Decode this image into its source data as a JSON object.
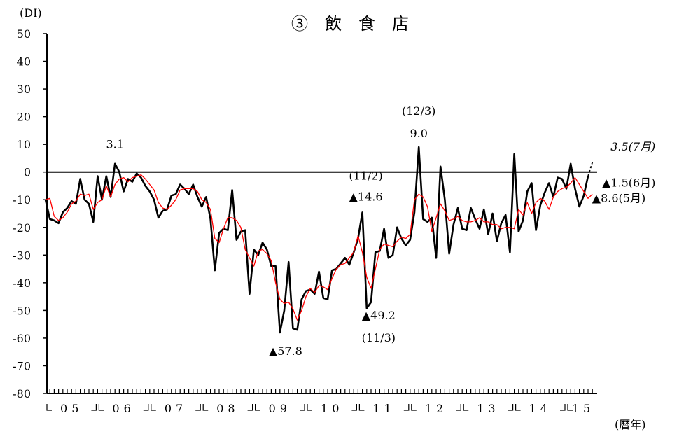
{
  "chart_data": {
    "type": "line",
    "title": "③　飲　食　店",
    "ylabel": "(DI)",
    "xlabel": "(暦年)",
    "ylim": [
      -80,
      50
    ],
    "yticks": [
      50,
      40,
      30,
      20,
      10,
      0,
      -10,
      -20,
      -30,
      -40,
      -50,
      -60,
      -70,
      -80
    ],
    "year_labels": [
      "05",
      "06",
      "07",
      "08",
      "09",
      "10",
      "11",
      "12",
      "13",
      "14",
      "15"
    ],
    "year_start_index": [
      0,
      12,
      24,
      36,
      48,
      60,
      72,
      84,
      96,
      108,
      120
    ],
    "months_total": 127,
    "zero_line": true,
    "series": [
      {
        "color": "#000000",
        "values": [
          -10,
          -17,
          -17.5,
          -18.5,
          -14.5,
          -13,
          -10.5,
          -11.5,
          -2.5,
          -10,
          -11.5,
          -18,
          -1.5,
          -10,
          -1.5,
          -9,
          3,
          0,
          -7,
          -2.5,
          -3.5,
          -0.5,
          -2,
          -5,
          -7,
          -10,
          -16.5,
          -14,
          -13.5,
          -8.5,
          -8,
          -4.5,
          -6,
          -8,
          -4.5,
          -9,
          -12.5,
          -9,
          -17,
          -35.5,
          -22,
          -20.5,
          -21,
          -6.5,
          -24.5,
          -21.5,
          -21,
          -44,
          -28,
          -30,
          -25.5,
          -28,
          -34,
          -34,
          -58,
          -50,
          -32.5,
          -56.5,
          -57,
          -46,
          -43,
          -42.5,
          -44,
          -36,
          -45.5,
          -46,
          -35.5,
          -35,
          -33,
          -31,
          -33.5,
          -29,
          -24,
          -14.6,
          -49.2,
          -47,
          -29,
          -28.5,
          -20.5,
          -31,
          -30,
          -20,
          -24,
          -26.5,
          -24.5,
          -14.5,
          9,
          -17,
          -18,
          -16.5,
          -31,
          2,
          -10,
          -29.5,
          -19,
          -13,
          -20.5,
          -21,
          -13,
          -17,
          -20.5,
          -13.5,
          -22.5,
          -15,
          -25,
          -18.5,
          -15.5,
          -29,
          6.5,
          -21.5,
          -17.5,
          -7,
          -4,
          -21,
          -12,
          -7.5,
          -4,
          -9,
          -2,
          -2.5,
          -6,
          3,
          -6,
          -12.5,
          -8.6,
          -1.5,
          3.5
        ],
        "dashed_from_index": 126
      },
      {
        "color": "#ff0000",
        "values": [
          -10,
          -9.5,
          -16,
          -17.5,
          -16.5,
          -14.5,
          -11.5,
          -10.5,
          -8,
          -8.5,
          -8,
          -13.5,
          -11,
          -10,
          -5,
          -9,
          -4.5,
          -2.5,
          -2,
          -3.5,
          -2,
          -1.5,
          -1,
          -2.5,
          -4.5,
          -6.5,
          -11,
          -13,
          -13.5,
          -12,
          -10,
          -6.5,
          -6,
          -6,
          -6,
          -7,
          -10,
          -11,
          -13.5,
          -24,
          -25.5,
          -20.5,
          -16.5,
          -16.5,
          -17.5,
          -20,
          -28,
          -31,
          -34,
          -28.5,
          -28,
          -29.5,
          -32,
          -40,
          -46,
          -47.5,
          -47,
          -49.5,
          -53.5,
          -50,
          -45,
          -42,
          -43.5,
          -41,
          -41.5,
          -42.5,
          -38.5,
          -35,
          -33.5,
          -33,
          -31,
          -29,
          -23,
          -29,
          -38,
          -42,
          -35,
          -28,
          -26,
          -26.5,
          -27,
          -25,
          -23.5,
          -24,
          -22.5,
          -10,
          -8,
          -9,
          -12.5,
          -21.5,
          -16.5,
          -11.5,
          -14,
          -17.5,
          -17,
          -16,
          -17.5,
          -18,
          -18,
          -17.5,
          -16.5,
          -18,
          -18,
          -19,
          -19,
          -20.5,
          -20,
          -20,
          -20.5,
          -13.5,
          -15.5,
          -11,
          -15,
          -11,
          -9.5,
          -10.5,
          -13.5,
          -9,
          -7,
          -6,
          -5.5,
          -4,
          -2,
          -4.5,
          -7,
          -9.5,
          -8
        ]
      }
    ],
    "annotations": [
      {
        "text": "3.1",
        "index": 16,
        "value": 3.1
      },
      {
        "text": "▲57.8",
        "index": 54,
        "value": -57.8
      },
      {
        "text": "(11/2)",
        "index": 73,
        "value": -14.6
      },
      {
        "text": "▲14.6",
        "index": 73,
        "value": -14.6
      },
      {
        "text": "▲49.2",
        "index": 74,
        "value": -49.2
      },
      {
        "text": "(11/3)",
        "index": 74,
        "value": -49.2
      },
      {
        "text": "(12/3)",
        "index": 86,
        "value": 9.0
      },
      {
        "text": "9.0",
        "index": 86,
        "value": 9.0
      },
      {
        "text": "3.5(7月)",
        "index": 126,
        "value": 3.5
      },
      {
        "text": "▲1.5(6月)",
        "index": 125,
        "value": -1.5
      },
      {
        "text": "▲8.6(5月)",
        "index": 124,
        "value": -8.6
      }
    ]
  }
}
